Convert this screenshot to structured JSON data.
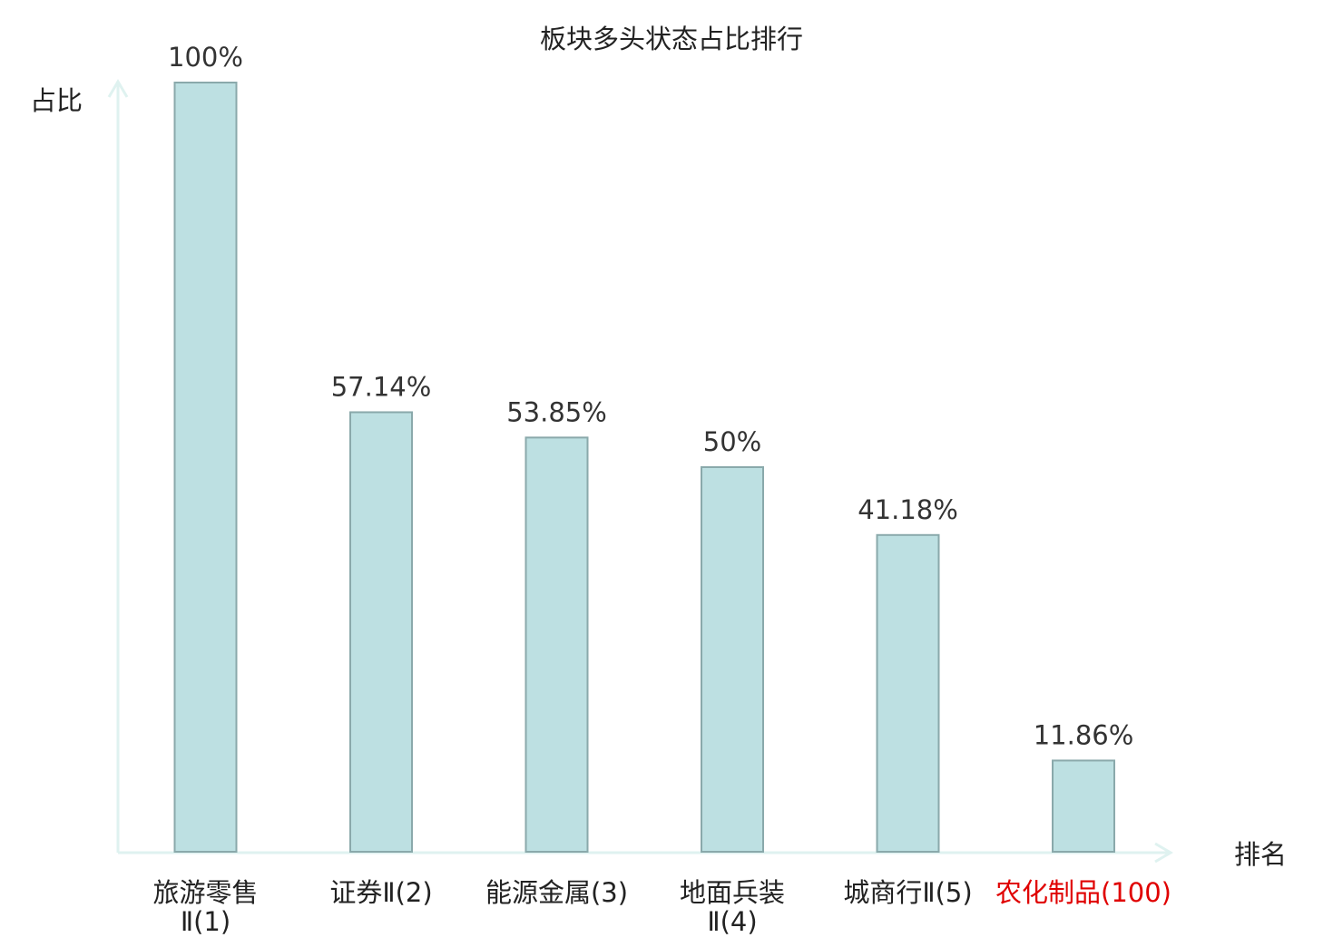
{
  "colors": {
    "bar_fill": "#bde0e2",
    "bar_stroke": "#8aa9ab",
    "axis": "#dff2f0",
    "text": "#222222",
    "value_label": "#333333",
    "highlight": "#e00000"
  },
  "chart_data": {
    "type": "bar",
    "title": "板块多头状态占比排行",
    "xlabel": "排名",
    "ylabel": "占比",
    "ylim": [
      0,
      100
    ],
    "grid": false,
    "categories": [
      {
        "lines": [
          "旅游零售",
          "Ⅱ(1)"
        ],
        "highlight": false
      },
      {
        "lines": [
          "证券Ⅱ(2)"
        ],
        "highlight": false
      },
      {
        "lines": [
          "能源金属(3)"
        ],
        "highlight": false
      },
      {
        "lines": [
          "地面兵装",
          "Ⅱ(4)"
        ],
        "highlight": false
      },
      {
        "lines": [
          "城商行Ⅱ(5)"
        ],
        "highlight": false
      },
      {
        "lines": [
          "农化制品(100)"
        ],
        "highlight": true
      }
    ],
    "values": [
      100,
      57.14,
      53.85,
      50,
      41.18,
      11.86
    ],
    "value_labels": [
      "100%",
      "57.14%",
      "53.85%",
      "50%",
      "41.18%",
      "11.86%"
    ]
  }
}
